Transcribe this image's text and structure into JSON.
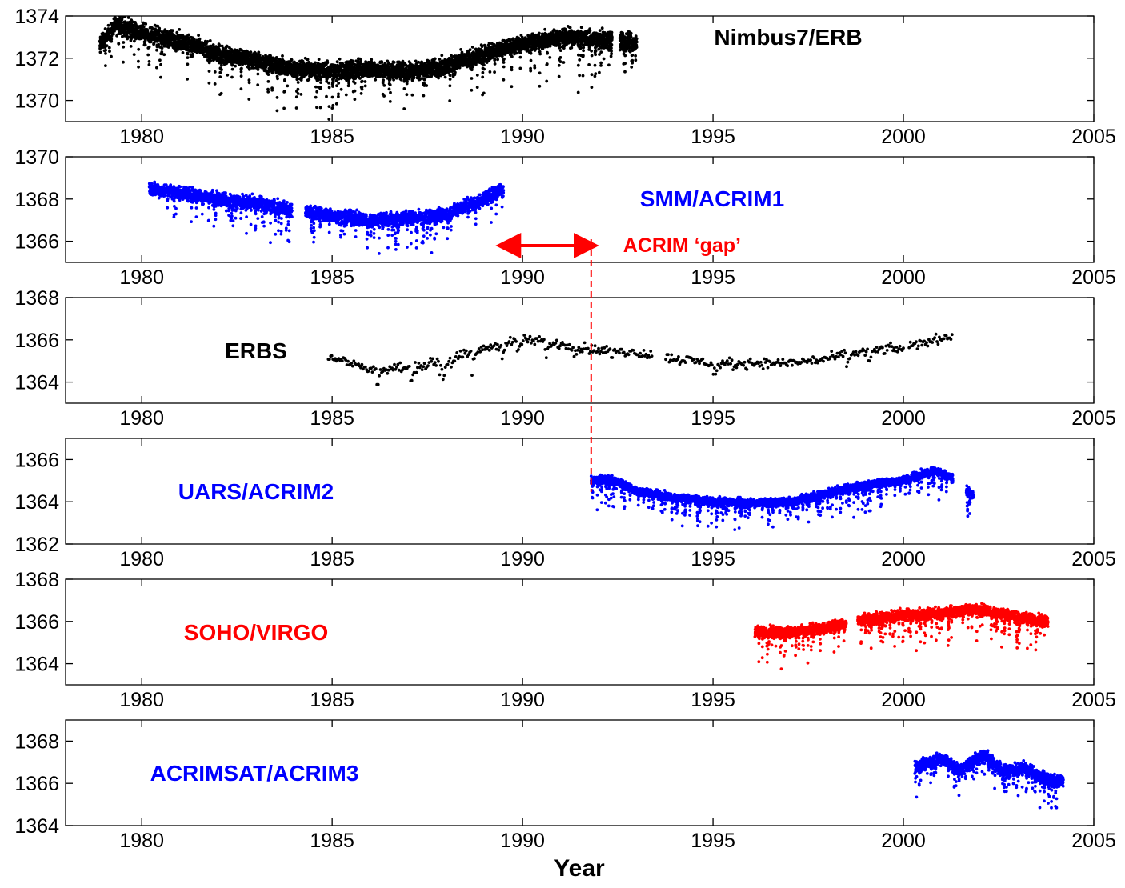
{
  "chart_data": {
    "type": "scatter",
    "title": "",
    "xlabel": "Year",
    "xlim": [
      1978,
      2005
    ],
    "xticks": [
      "1980",
      "1985",
      "1990",
      "1995",
      "2000",
      "2005"
    ],
    "annotation": {
      "text": "ACRIM ‘gap’",
      "from": 1989.5,
      "to": 1991.8,
      "color": "#ff0000"
    },
    "panels": [
      {
        "name": "Nimbus7/ERB",
        "color": "#000000",
        "ylim": [
          1369,
          1374
        ],
        "yticks": [
          "1370",
          "1372",
          "1374"
        ],
        "data": {
          "start": 1978.9,
          "end": 1993.0,
          "gaps": [
            [
              1992.35,
              1992.55
            ]
          ],
          "spread": 0.65,
          "dipFreq": 0.02,
          "dipDepth": 2.6,
          "density": 1.0
        },
        "trend": [
          [
            1978.9,
            1372.6
          ],
          [
            1979.3,
            1373.6
          ],
          [
            1980,
            1373.2
          ],
          [
            1981,
            1372.8
          ],
          [
            1982,
            1372.2
          ],
          [
            1983,
            1371.9
          ],
          [
            1984,
            1371.5
          ],
          [
            1985,
            1371.4
          ],
          [
            1986,
            1371.5
          ],
          [
            1987,
            1371.4
          ],
          [
            1988,
            1371.6
          ],
          [
            1989,
            1372.2
          ],
          [
            1990,
            1372.7
          ],
          [
            1991,
            1373.0
          ],
          [
            1992,
            1372.9
          ],
          [
            1993,
            1372.7
          ]
        ]
      },
      {
        "name": "SMM/ACRIM1",
        "color": "#0000ff",
        "ylim": [
          1365,
          1370
        ],
        "yticks": [
          "1366",
          "1368",
          "1370"
        ],
        "data": {
          "start": 1980.2,
          "end": 1989.5,
          "gaps": [
            [
              1983.95,
              1984.3
            ]
          ],
          "spread": 0.5,
          "dipFreq": 0.025,
          "dipDepth": 1.8,
          "density": 0.9
        },
        "trend": [
          [
            1980.2,
            1368.5
          ],
          [
            1981,
            1368.3
          ],
          [
            1982,
            1368.0
          ],
          [
            1983,
            1367.8
          ],
          [
            1984,
            1367.5
          ],
          [
            1985,
            1367.2
          ],
          [
            1986,
            1367.0
          ],
          [
            1987,
            1367.1
          ],
          [
            1988,
            1367.3
          ],
          [
            1989,
            1368.0
          ],
          [
            1989.5,
            1368.5
          ]
        ]
      },
      {
        "name": "ERBS",
        "color": "#000000",
        "ylim": [
          1363,
          1368
        ],
        "yticks": [
          "1364",
          "1366",
          "1368"
        ],
        "data": {
          "start": 1984.9,
          "end": 2001.3,
          "gaps": [
            [
              1993.4,
              1993.75
            ],
            [
              2000.0,
              2000.15
            ]
          ],
          "spread": 0.35,
          "dipFreq": 0.03,
          "dipDepth": 1.2,
          "density": 0.09
        },
        "trend": [
          [
            1984.9,
            1365.2
          ],
          [
            1986,
            1364.6
          ],
          [
            1987,
            1364.7
          ],
          [
            1988,
            1365.0
          ],
          [
            1989,
            1365.6
          ],
          [
            1990,
            1366.0
          ],
          [
            1991,
            1365.8
          ],
          [
            1992,
            1365.5
          ],
          [
            1993,
            1365.4
          ],
          [
            1994,
            1365.1
          ],
          [
            1995,
            1364.9
          ],
          [
            1996,
            1364.9
          ],
          [
            1997,
            1364.9
          ],
          [
            1998,
            1365.1
          ],
          [
            1999,
            1365.5
          ],
          [
            2000,
            1365.6
          ],
          [
            2001,
            1366.1
          ],
          [
            2001.3,
            1366.2
          ]
        ]
      },
      {
        "name": "UARS/ACRIM2",
        "color": "#0000ff",
        "ylim": [
          1362,
          1367
        ],
        "yticks": [
          "1362",
          "1364",
          "1366"
        ],
        "data": {
          "start": 1991.8,
          "end": 2001.85,
          "gaps": [
            [
              2001.3,
              2001.65
            ]
          ],
          "spread": 0.3,
          "dipFreq": 0.03,
          "dipDepth": 1.5,
          "density": 1.0
        },
        "trend": [
          [
            1991.8,
            1365.0
          ],
          [
            1992.3,
            1365.1
          ],
          [
            1993,
            1364.5
          ],
          [
            1994,
            1364.2
          ],
          [
            1995,
            1364.0
          ],
          [
            1996,
            1363.95
          ],
          [
            1997,
            1364.0
          ],
          [
            1998,
            1364.4
          ],
          [
            1999,
            1364.8
          ],
          [
            2000,
            1365.0
          ],
          [
            2000.8,
            1365.5
          ],
          [
            2001.3,
            1365.1
          ],
          [
            2001.85,
            1364.3
          ]
        ]
      },
      {
        "name": "SOHO/VIRGO",
        "color": "#ff0000",
        "ylim": [
          1363,
          1368
        ],
        "yticks": [
          "1364",
          "1366",
          "1368"
        ],
        "data": {
          "start": 1996.1,
          "end": 2003.8,
          "gaps": [
            [
              1998.5,
              1998.8
            ]
          ],
          "spread": 0.4,
          "dipFreq": 0.03,
          "dipDepth": 1.8,
          "density": 1.0
        },
        "trend": [
          [
            1996.1,
            1365.5
          ],
          [
            1997,
            1365.5
          ],
          [
            1998,
            1365.7
          ],
          [
            1999,
            1366.1
          ],
          [
            2000,
            1366.3
          ],
          [
            2001,
            1366.4
          ],
          [
            2002,
            1366.6
          ],
          [
            2003,
            1366.2
          ],
          [
            2003.8,
            1366.0
          ]
        ]
      },
      {
        "name": "ACRIMSAT/ACRIM3",
        "color": "#0000ff",
        "ylim": [
          1364,
          1369
        ],
        "yticks": [
          "1364",
          "1366",
          "1368"
        ],
        "data": {
          "start": 2000.3,
          "end": 2004.2,
          "gaps": [],
          "spread": 0.45,
          "dipFreq": 0.03,
          "dipDepth": 1.5,
          "density": 1.0
        },
        "trend": [
          [
            2000.3,
            1366.8
          ],
          [
            2001,
            1367.2
          ],
          [
            2001.5,
            1366.6
          ],
          [
            2002.1,
            1367.4
          ],
          [
            2002.6,
            1366.6
          ],
          [
            2003.2,
            1366.7
          ],
          [
            2003.6,
            1366.3
          ],
          [
            2004.2,
            1366.1
          ]
        ]
      }
    ]
  }
}
